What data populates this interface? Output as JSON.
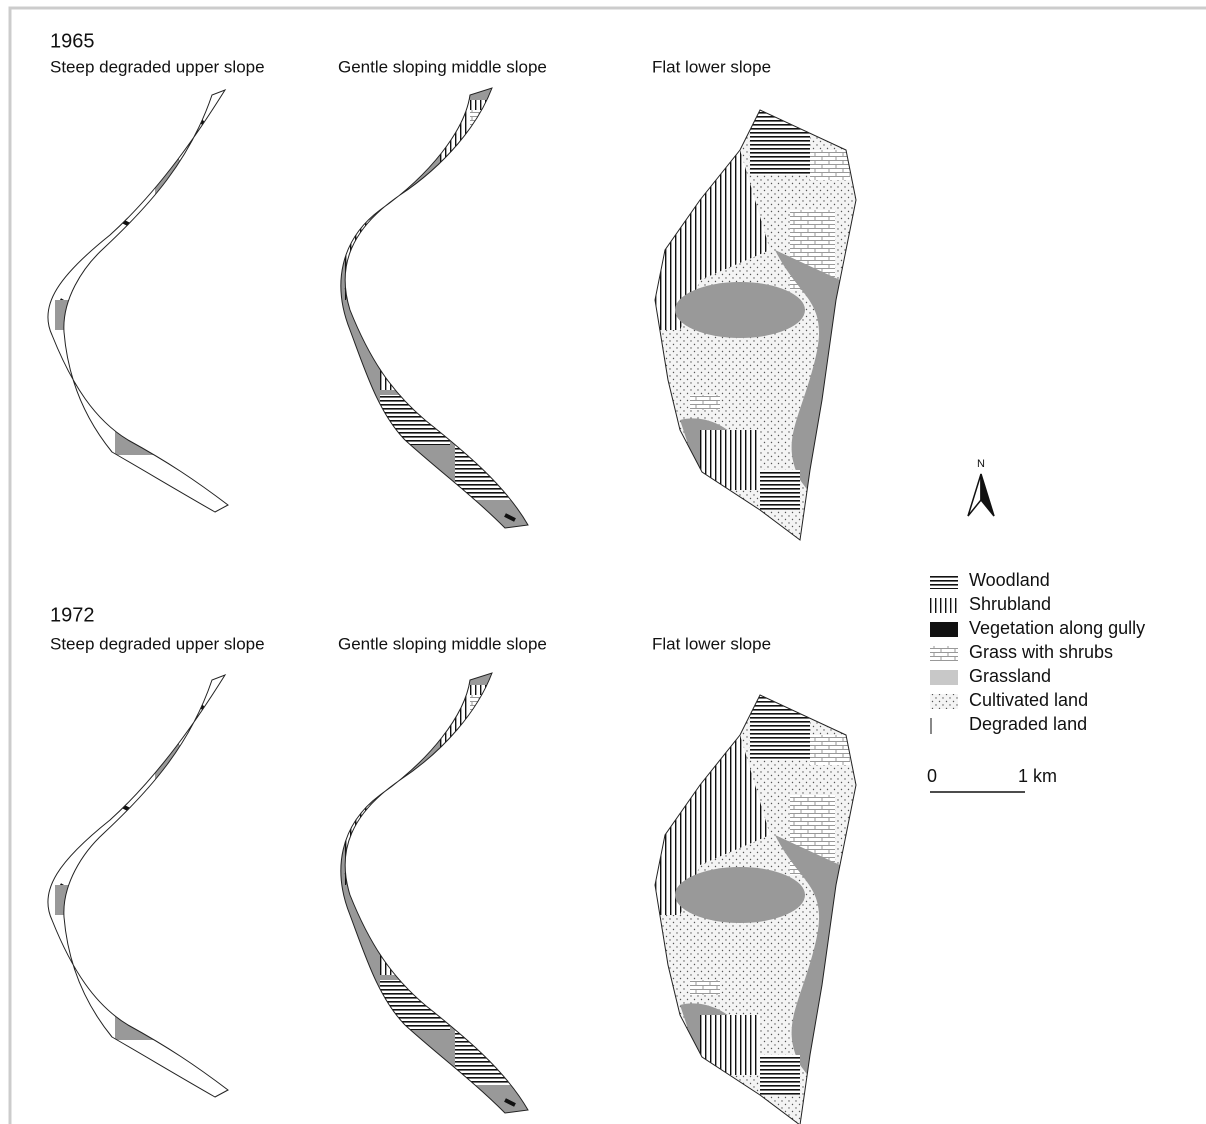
{
  "maps": [
    {
      "year": "1965",
      "panels": [
        "Steep degraded upper slope",
        "Gentle sloping middle slope",
        "Flat lower slope"
      ]
    },
    {
      "year": "1972",
      "panels": [
        "Steep degraded upper slope",
        "Gentle sloping middle slope",
        "Flat lower slope"
      ]
    }
  ],
  "north": "N",
  "legend": {
    "items": [
      "Woodland",
      "Shrubland",
      "Vegetation along gully",
      "Grass with shrubs",
      "Grassland",
      "Cultivated land",
      "Degraded land"
    ]
  },
  "scale": {
    "start": "0",
    "end": "1 km"
  }
}
